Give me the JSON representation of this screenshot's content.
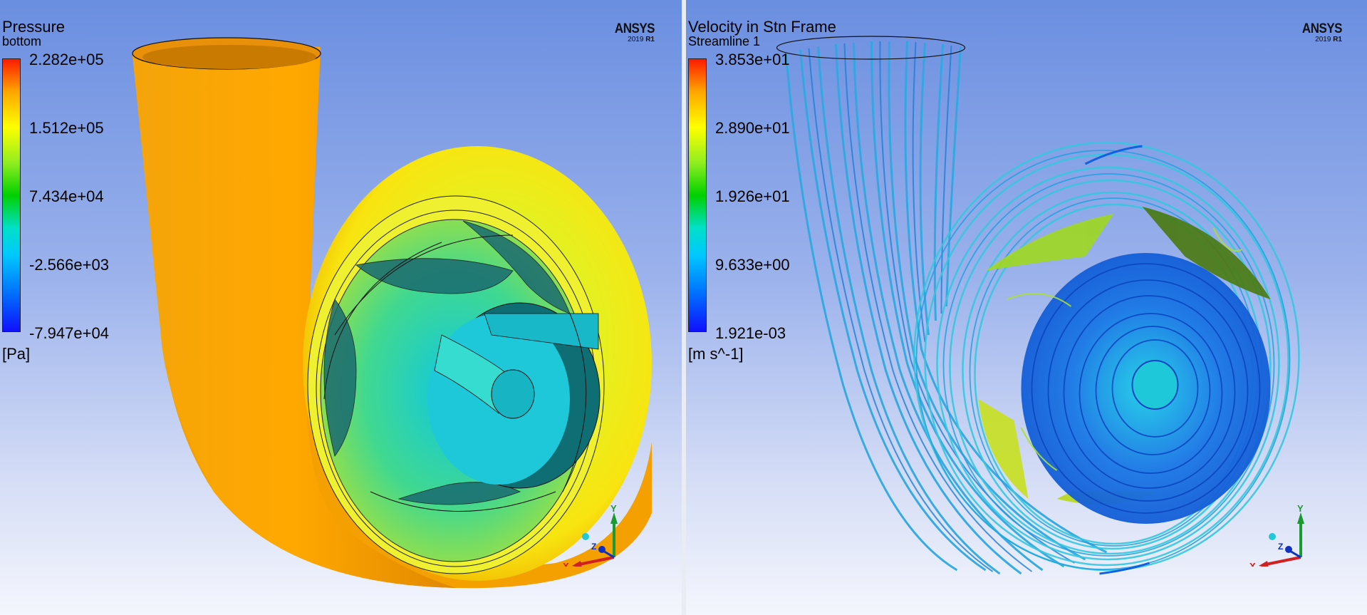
{
  "left_view": {
    "title": "Pressure",
    "subtitle": "bottom",
    "legend_ticks": [
      "2.282e+05",
      "1.512e+05",
      "7.434e+04",
      "-2.566e+03",
      "-7.947e+04"
    ],
    "unit": "[Pa]",
    "logo": "ANSYS",
    "logo_version": "2019",
    "logo_release": "R1",
    "axes": {
      "x": "X",
      "y": "Y",
      "z": "Z"
    }
  },
  "right_view": {
    "title": "Velocity in Stn Frame",
    "subtitle": "Streamline 1",
    "legend_ticks": [
      "3.853e+01",
      "2.890e+01",
      "1.926e+01",
      "9.633e+00",
      "1.921e-03"
    ],
    "unit": "[m s^-1]",
    "logo": "ANSYS",
    "logo_version": "2019",
    "logo_release": "R1",
    "axes": {
      "x": "X",
      "y": "Y",
      "z": "Z"
    }
  },
  "colors": {
    "background_top": "#6a8ee0",
    "background_bottom": "#f4f6fd",
    "casing_orange": "#f5a000",
    "casing_yellow": "#f2f020",
    "impeller_cyan": "#1fc8d8",
    "streamline_blue": "#2fa8e0",
    "streamline_deep": "#1060e0"
  }
}
